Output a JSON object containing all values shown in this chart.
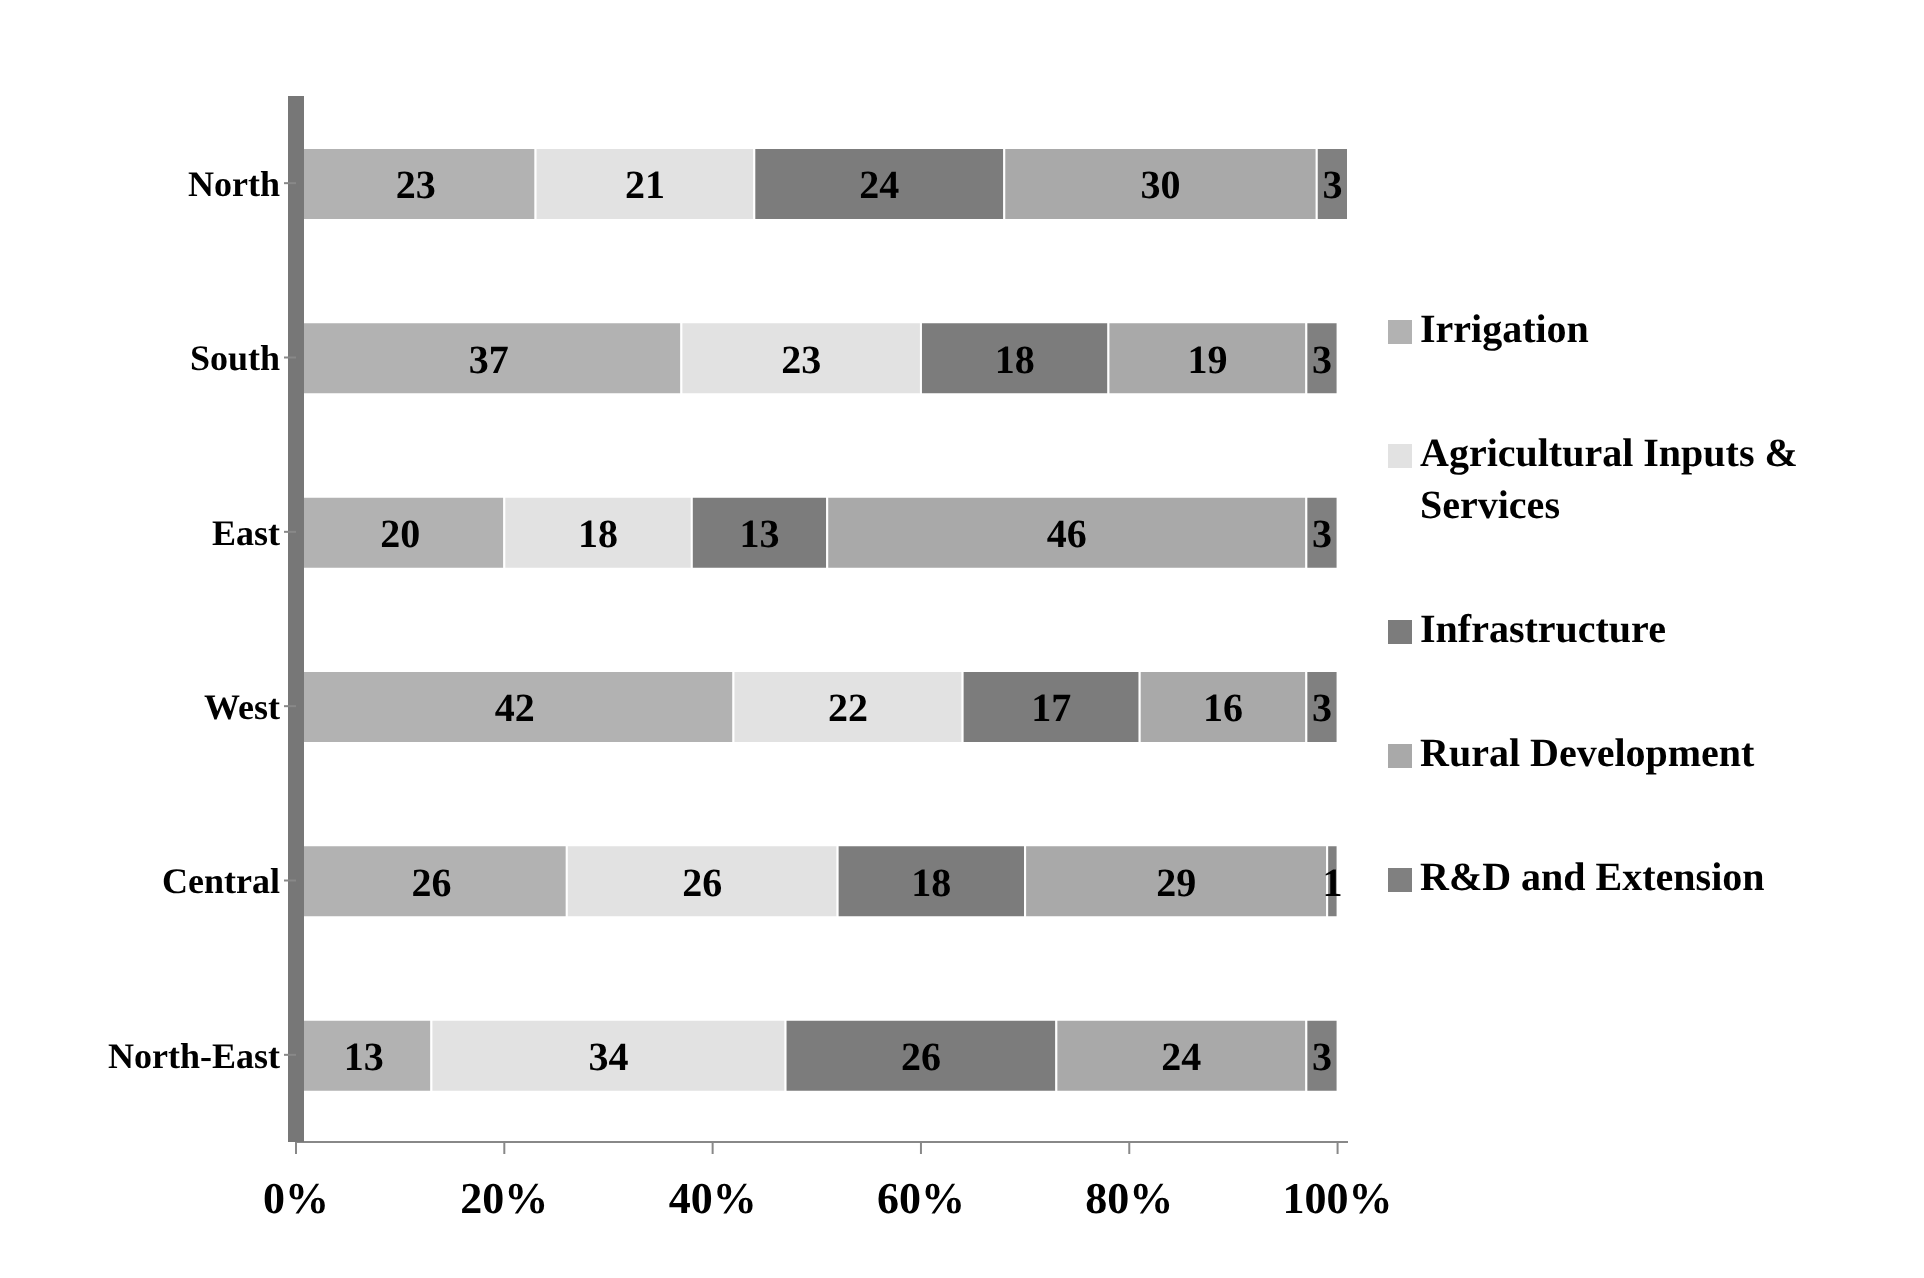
{
  "chart_data": {
    "type": "bar",
    "orientation": "horizontal",
    "stacked": true,
    "data_labels": true,
    "legend": "right",
    "grid": false,
    "categories": [
      "North",
      "South",
      "East",
      "West",
      "Central",
      "North-East"
    ],
    "series": [
      {
        "name": "Irrigation",
        "color": "#b2b2b2",
        "values": [
          23,
          37,
          20,
          42,
          26,
          13
        ]
      },
      {
        "name": "Agricultural Inputs & Services",
        "color": "#e2e2e2",
        "values": [
          21,
          23,
          18,
          22,
          26,
          34
        ]
      },
      {
        "name": "Infrastructure",
        "color": "#7c7c7c",
        "values": [
          24,
          18,
          13,
          17,
          18,
          26
        ]
      },
      {
        "name": "Rural Development",
        "color": "#a9a9a9",
        "values": [
          30,
          19,
          46,
          16,
          29,
          24
        ]
      },
      {
        "name": "R&D and Extension",
        "color": "#808080",
        "values": [
          3,
          3,
          3,
          3,
          1,
          3
        ]
      }
    ],
    "xlim": [
      0,
      101
    ],
    "xticks": [
      {
        "value": 0,
        "label": "0%"
      },
      {
        "value": 20,
        "label": "20%"
      },
      {
        "value": 40,
        "label": "40%"
      },
      {
        "value": 60,
        "label": "60%"
      },
      {
        "value": 80,
        "label": "80%"
      },
      {
        "value": 100,
        "label": "100%"
      }
    ]
  }
}
